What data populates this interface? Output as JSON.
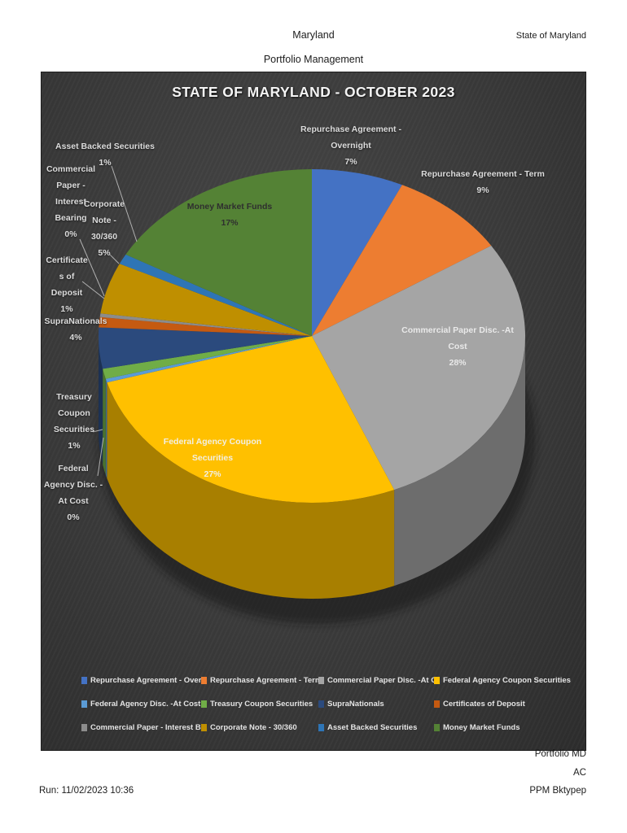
{
  "header": {
    "center_line1": "Maryland",
    "center_line2": "Portfolio Management",
    "right": "State of Maryland"
  },
  "footer": {
    "right_line1": "Portfolio MD",
    "right_line2": "AC",
    "right_line3": "PPM Bktypep",
    "left": "Run: 11/02/2023 10:36"
  },
  "chart_data": {
    "type": "pie",
    "style": "3d",
    "title": "STATE OF MARYLAND - OCTOBER 2023",
    "legend_position": "bottom",
    "start_angle_deg": 0,
    "direction": "clockwise",
    "series": [
      {
        "label": "Repurchase Agreement - Overnight",
        "pct": 7,
        "color": "#4472C4"
      },
      {
        "label": "Repurchase Agreement - Term",
        "pct": 9,
        "color": "#ED7D31"
      },
      {
        "label": "Commercial Paper Disc. -At Cost",
        "pct": 28,
        "color": "#A5A5A5"
      },
      {
        "label": "Federal Agency Coupon Securities",
        "pct": 27,
        "color": "#FFC000"
      },
      {
        "label": "Federal Agency Disc. -At Cost",
        "pct": 0,
        "color": "#5B9BD5"
      },
      {
        "label": "Treasury Coupon Securities",
        "pct": 1,
        "color": "#70AD47"
      },
      {
        "label": "SupraNationals",
        "pct": 4,
        "color": "#2B4A7D"
      },
      {
        "label": "Certificates of Deposit",
        "pct": 1,
        "color": "#C55A11"
      },
      {
        "label": "Commercial Paper - Interest Bearing",
        "pct": 0,
        "color": "#8C8C8C"
      },
      {
        "label": "Corporate Note - 30/360",
        "pct": 5,
        "color": "#BF8F00"
      },
      {
        "label": "Asset Backed Securities",
        "pct": 1,
        "color": "#2E75B6"
      },
      {
        "label": "Money Market Funds",
        "pct": 17,
        "color": "#548235"
      }
    ],
    "callouts": [
      {
        "lines": [
          "Repurchase Agreement -",
          "Overnight",
          "7%"
        ]
      },
      {
        "lines": [
          "Repurchase Agreement - Term",
          "9%"
        ]
      },
      {
        "lines": [
          "Commercial Paper Disc. -At",
          "Cost",
          "28%"
        ]
      },
      {
        "lines": [
          "Federal Agency Coupon",
          "Securities",
          "27%"
        ]
      },
      {
        "lines": [
          "Federal",
          "Agency Disc. -",
          "At Cost",
          "0%"
        ]
      },
      {
        "lines": [
          "Treasury",
          "Coupon",
          "Securities",
          "1%"
        ]
      },
      {
        "lines": [
          "SupraNationals",
          "4%"
        ]
      },
      {
        "lines": [
          "Certificate",
          "s of",
          "Deposit",
          "1%"
        ]
      },
      {
        "lines": [
          "Commercial",
          "Paper -",
          "Interest",
          "Bearing",
          "0%"
        ]
      },
      {
        "lines": [
          "Corporate",
          "Note -",
          "30/360",
          "5%"
        ]
      },
      {
        "lines": [
          "Asset Backed Securities",
          "1%"
        ]
      },
      {
        "lines": [
          "Money Market Funds",
          "17%"
        ]
      }
    ]
  }
}
